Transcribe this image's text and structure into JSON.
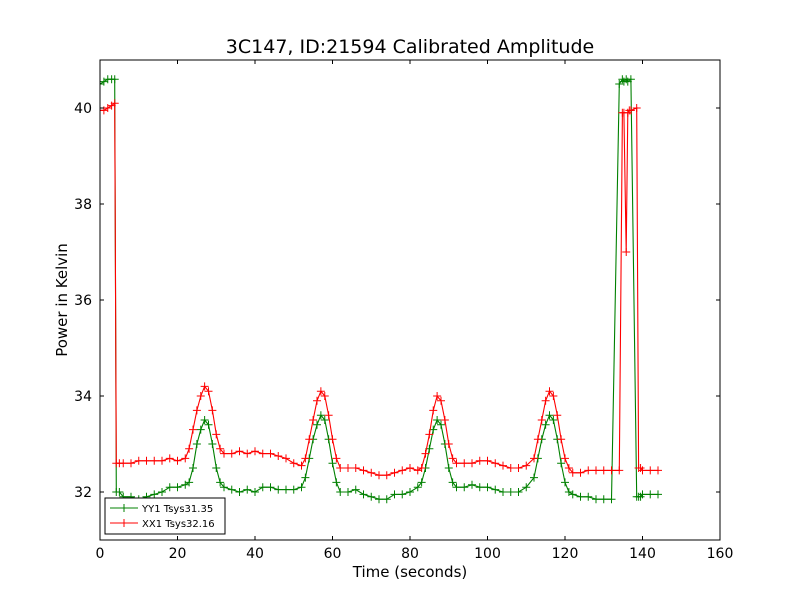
{
  "chart_data": {
    "type": "line",
    "title": "3C147, ID:21594 Calibrated Amplitude",
    "xlabel": "Time (seconds)",
    "ylabel": "Power in Kelvin",
    "xlim": [
      0,
      160
    ],
    "ylim": [
      31,
      41
    ],
    "xticks": [
      0,
      20,
      40,
      60,
      80,
      100,
      120,
      140,
      160
    ],
    "yticks": [
      32,
      34,
      36,
      38,
      40
    ],
    "grid": false,
    "legend_position": "lower-left",
    "marker": "+",
    "series": [
      {
        "name": "YY1 Tsys31.35",
        "color": "#008000",
        "x": [
          0,
          1,
          2,
          3,
          3.8,
          4.2,
          5,
          6,
          8,
          10,
          12,
          14,
          16,
          18,
          20,
          22,
          23,
          24,
          25,
          26,
          27,
          28,
          29,
          30,
          31,
          32,
          34,
          36,
          38,
          40,
          42,
          44,
          46,
          48,
          50,
          52,
          53,
          54,
          55,
          56,
          57,
          58,
          59,
          60,
          61,
          62,
          64,
          66,
          68,
          70,
          72,
          74,
          76,
          78,
          80,
          82,
          83,
          84,
          85,
          86,
          87,
          88,
          89,
          90,
          91,
          92,
          94,
          96,
          98,
          100,
          102,
          104,
          106,
          108,
          110,
          112,
          113,
          114,
          115,
          116,
          117,
          118,
          119,
          120,
          121,
          122,
          124,
          126,
          128,
          130,
          132,
          134,
          134.8,
          135.2,
          135.8,
          136.2,
          137,
          138.5,
          139,
          139.5,
          140,
          142,
          144
        ],
        "y": [
          40.5,
          40.55,
          40.6,
          40.6,
          40.6,
          32.0,
          32.0,
          31.9,
          31.9,
          31.85,
          31.9,
          31.95,
          32.0,
          32.1,
          32.1,
          32.15,
          32.2,
          32.5,
          33.0,
          33.3,
          33.5,
          33.4,
          33.0,
          32.5,
          32.2,
          32.1,
          32.05,
          32.0,
          32.05,
          32.0,
          32.1,
          32.1,
          32.05,
          32.05,
          32.05,
          32.1,
          32.3,
          32.7,
          33.1,
          33.4,
          33.6,
          33.5,
          33.1,
          32.6,
          32.2,
          32.0,
          32.0,
          32.05,
          31.95,
          31.9,
          31.85,
          31.85,
          31.95,
          31.95,
          32.0,
          32.1,
          32.2,
          32.5,
          32.9,
          33.3,
          33.5,
          33.4,
          33.0,
          32.5,
          32.2,
          32.1,
          32.1,
          32.15,
          32.1,
          32.1,
          32.05,
          32.0,
          32.0,
          32.0,
          32.1,
          32.3,
          32.7,
          33.1,
          33.4,
          33.6,
          33.5,
          33.1,
          32.6,
          32.2,
          32.0,
          31.95,
          31.9,
          31.9,
          31.85,
          31.85,
          31.85,
          40.5,
          40.6,
          40.55,
          40.6,
          40.55,
          40.6,
          31.9,
          31.9,
          31.9,
          31.95,
          31.95,
          31.95
        ]
      },
      {
        "name": "XX1 Tsys32.16",
        "color": "#ff0000",
        "x": [
          0,
          1,
          2,
          3,
          3.8,
          4.2,
          5,
          6,
          8,
          10,
          12,
          14,
          16,
          18,
          20,
          22,
          23,
          24,
          25,
          26,
          27,
          28,
          29,
          30,
          31,
          32,
          34,
          36,
          38,
          40,
          42,
          44,
          46,
          48,
          50,
          52,
          53,
          54,
          55,
          56,
          57,
          58,
          59,
          60,
          61,
          62,
          64,
          66,
          68,
          70,
          72,
          74,
          76,
          78,
          80,
          82,
          83,
          84,
          85,
          86,
          87,
          88,
          89,
          90,
          91,
          92,
          94,
          96,
          98,
          100,
          102,
          104,
          106,
          108,
          110,
          112,
          113,
          114,
          115,
          116,
          117,
          118,
          119,
          120,
          121,
          122,
          124,
          126,
          128,
          130,
          132,
          134,
          134.8,
          135.2,
          135.8,
          136.2,
          136.6,
          137,
          138.5,
          139,
          139.5,
          140,
          142,
          144
        ],
        "y": [
          39.95,
          39.95,
          40.0,
          40.05,
          40.1,
          32.6,
          32.6,
          32.6,
          32.6,
          32.65,
          32.65,
          32.65,
          32.65,
          32.7,
          32.65,
          32.7,
          32.9,
          33.3,
          33.7,
          34.0,
          34.2,
          34.1,
          33.7,
          33.2,
          32.9,
          32.8,
          32.8,
          32.85,
          32.8,
          32.85,
          32.8,
          32.8,
          32.75,
          32.7,
          32.6,
          32.55,
          32.7,
          33.1,
          33.5,
          33.9,
          34.1,
          34.0,
          33.6,
          33.1,
          32.7,
          32.5,
          32.5,
          32.5,
          32.45,
          32.4,
          32.35,
          32.35,
          32.4,
          32.45,
          32.5,
          32.45,
          32.5,
          32.8,
          33.2,
          33.7,
          34.0,
          33.9,
          33.5,
          33.0,
          32.7,
          32.6,
          32.6,
          32.6,
          32.65,
          32.65,
          32.6,
          32.55,
          32.5,
          32.5,
          32.55,
          32.7,
          33.1,
          33.5,
          33.9,
          34.1,
          34.0,
          33.6,
          33.1,
          32.7,
          32.5,
          32.4,
          32.4,
          32.45,
          32.45,
          32.45,
          32.45,
          32.45,
          39.9,
          39.9,
          37.0,
          39.9,
          39.95,
          39.95,
          40.0,
          32.5,
          32.5,
          32.45,
          32.45,
          32.45
        ]
      }
    ]
  }
}
